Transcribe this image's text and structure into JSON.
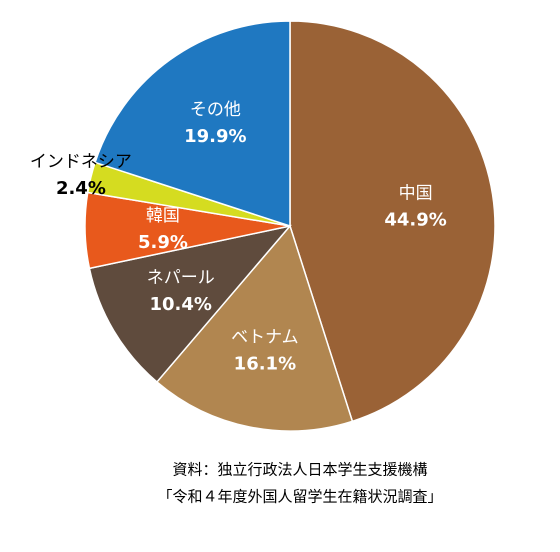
{
  "chart_data": {
    "type": "pie",
    "categories": [
      "中国",
      "ベトナム",
      "ネパール",
      "韓国",
      "インドネシア",
      "その他"
    ],
    "values": [
      44.9,
      16.1,
      10.4,
      5.9,
      2.4,
      19.9
    ],
    "value_labels": [
      "44.9%",
      "16.1%",
      "10.4%",
      "5.9%",
      "2.4%",
      "19.9%"
    ],
    "colors": [
      "#9a6236",
      "#b18650",
      "#5f4b3d",
      "#e8591c",
      "#d5dc20",
      "#1f78c1"
    ],
    "source": [
      "資料：独立行政法人日本学生支援機構",
      "「令和４年度外国人留学生在籍状況調査」"
    ]
  }
}
